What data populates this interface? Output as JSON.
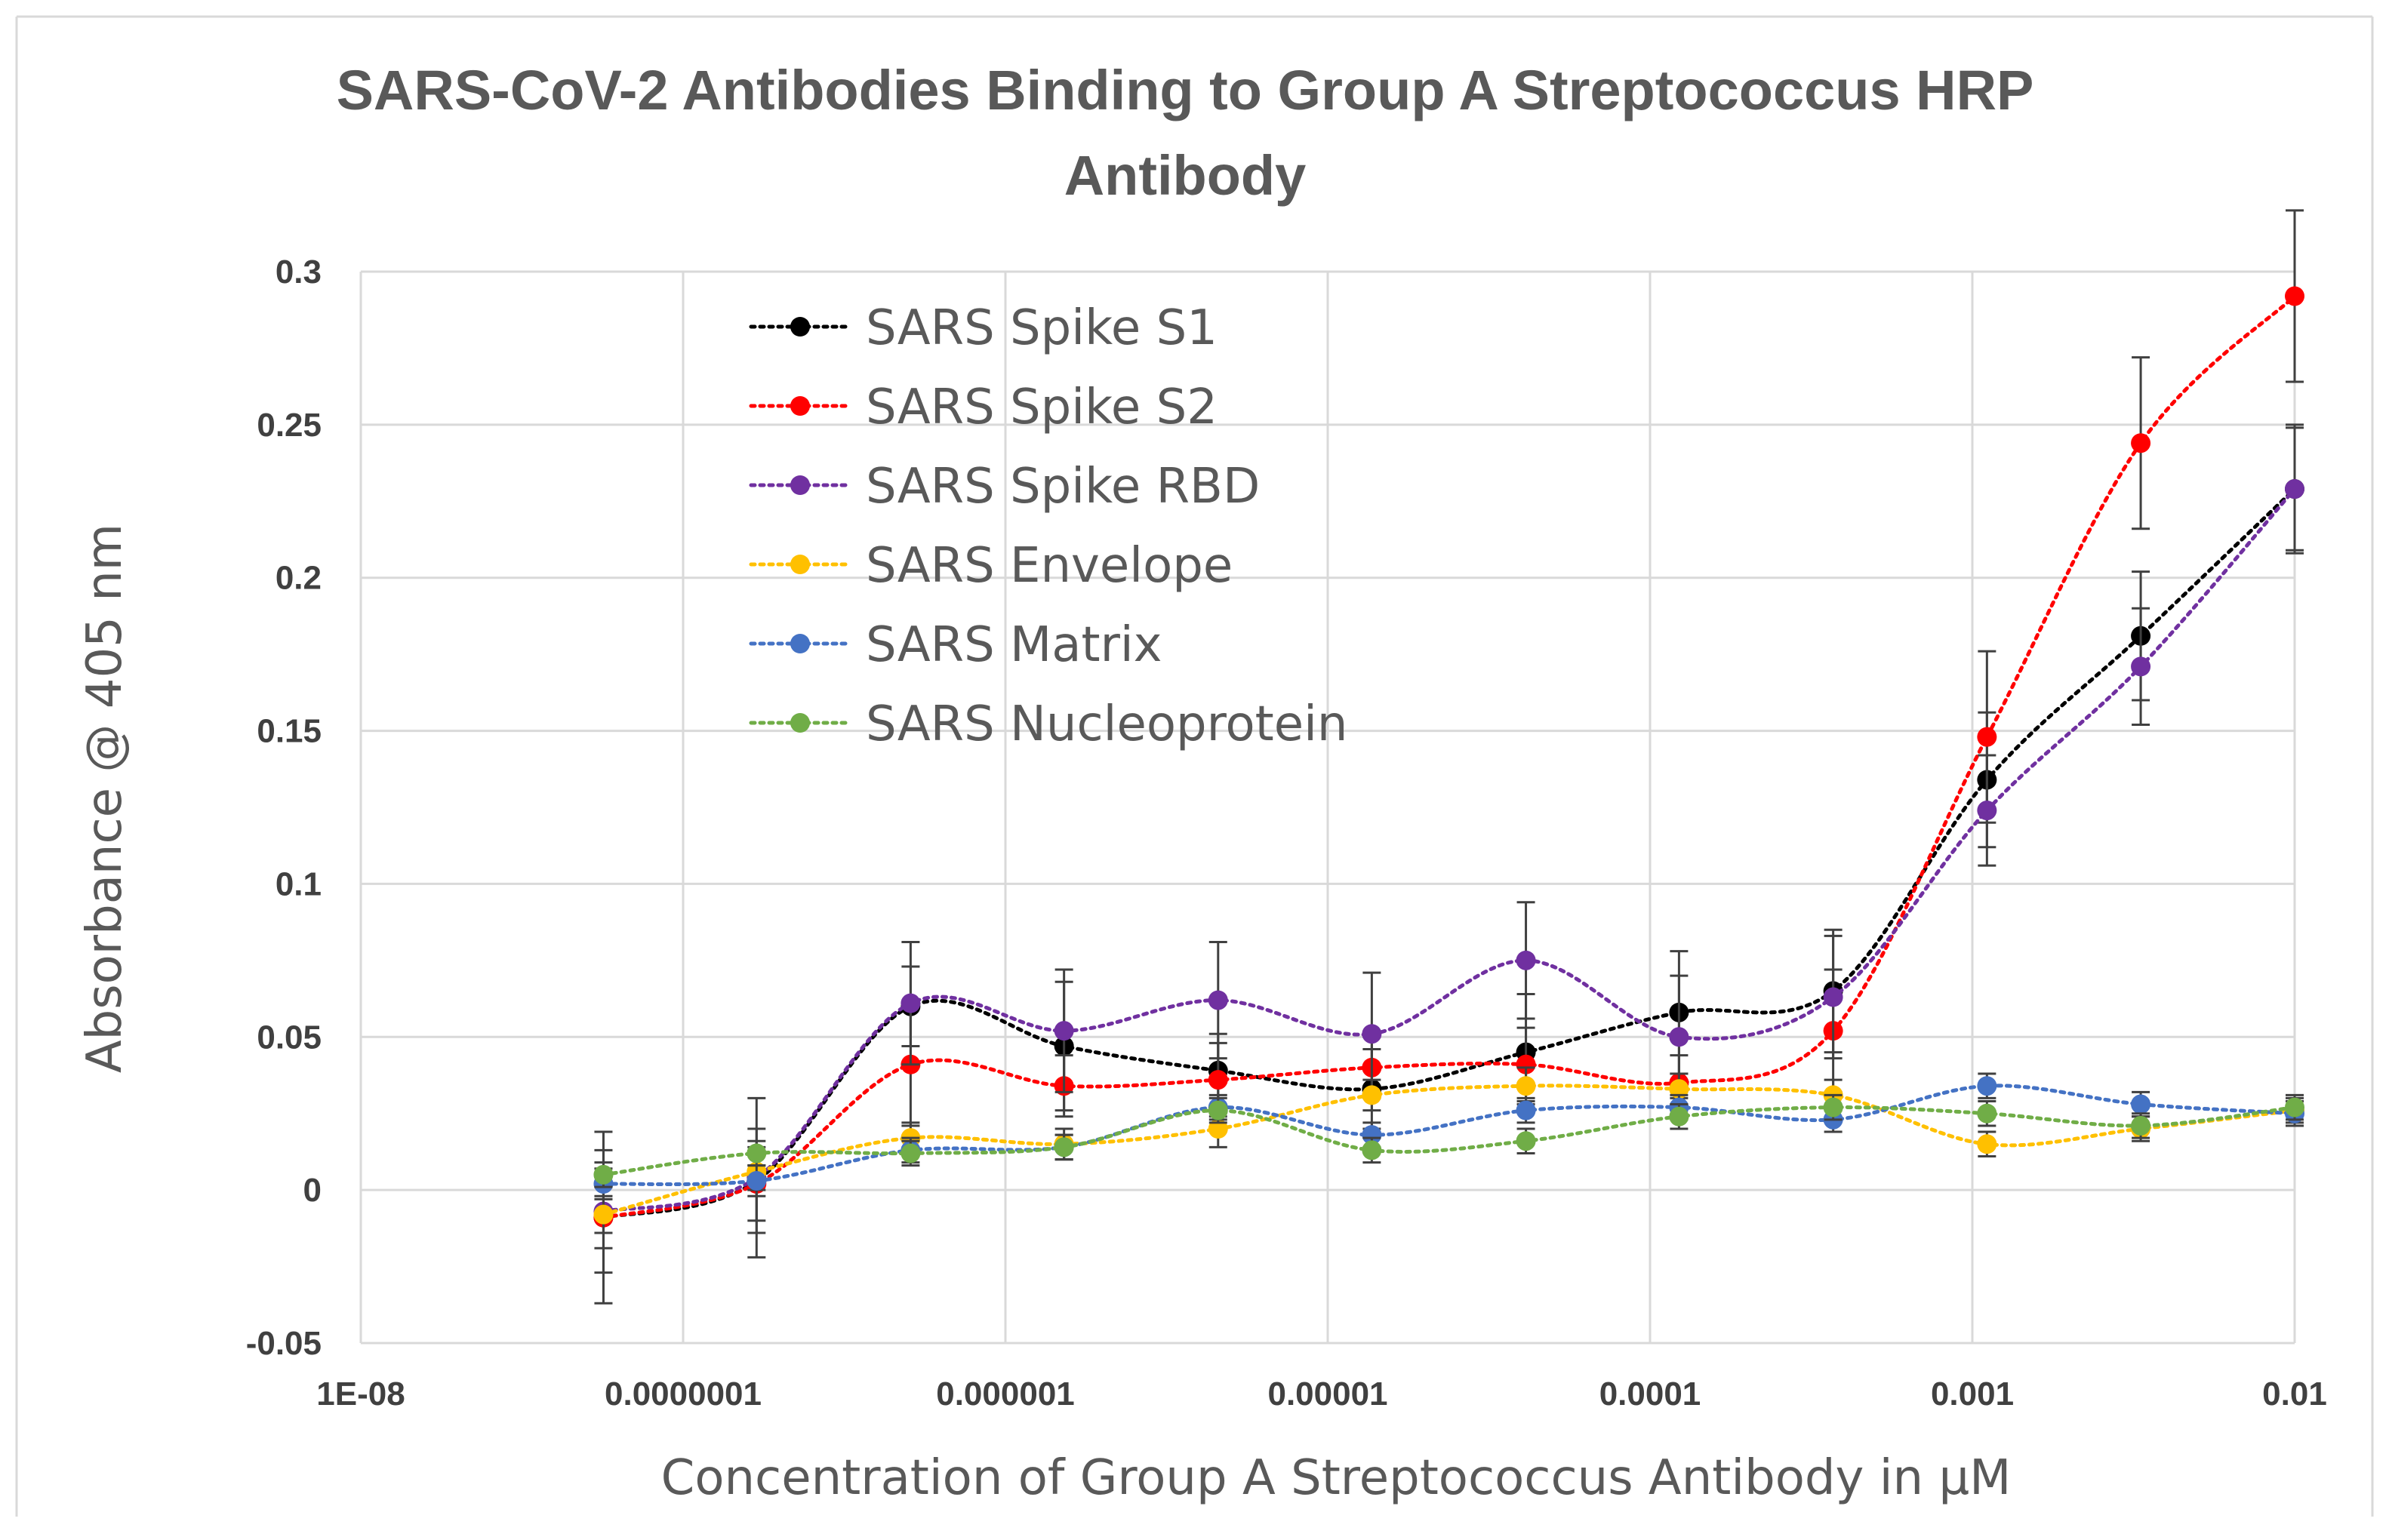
{
  "chart_data": {
    "type": "line",
    "title": "SARS-CoV-2 Antibodies Binding to Group A Streptococcus HRP Antibody",
    "title_lines": [
      "SARS-CoV-2 Antibodies Binding to Group A Streptococcus HRP",
      "Antibody"
    ],
    "xlabel": "Concentration of Group A Streptococcus Antibody in µM",
    "ylabel": "Absorbance @ 405 nm",
    "x_scale": "log",
    "xlim": [
      1e-08,
      0.01
    ],
    "ylim": [
      -0.05,
      0.3
    ],
    "grid": true,
    "legend_position": "top-left",
    "x_tick_labels": [
      "1E-08",
      "0.0000001",
      "0.000001",
      "0.00001",
      "0.0001",
      "0.001",
      "0.01"
    ],
    "y_tick_labels": [
      "-0.05",
      "0",
      "0.05",
      "0.1",
      "0.15",
      "0.2",
      "0.25",
      "0.3"
    ],
    "x": [
      5.66e-08,
      1.69e-07,
      5.08e-07,
      1.52e-06,
      4.57e-06,
      1.37e-05,
      4.12e-05,
      0.000123,
      0.00037,
      0.00111,
      0.00333,
      0.01
    ],
    "series": [
      {
        "name": "SARS Spike S1",
        "color": "#000000",
        "values": [
          -0.009,
          0.003,
          0.06,
          0.047,
          0.039,
          0.033,
          0.045,
          0.058,
          0.065,
          0.134,
          0.181,
          0.229
        ],
        "errors": [
          0.028,
          0.017,
          0.013,
          0.021,
          0.012,
          0.013,
          0.019,
          0.02,
          0.02,
          0.022,
          0.021,
          0.021
        ]
      },
      {
        "name": "SARS Spike S2",
        "color": "#ff0000",
        "values": [
          -0.009,
          0.002,
          0.041,
          0.034,
          0.036,
          0.04,
          0.041,
          0.035,
          0.052,
          0.148,
          0.244,
          0.292
        ],
        "errors": [
          0.01,
          0.012,
          0.02,
          0.01,
          0.012,
          0.01,
          0.012,
          0.009,
          0.02,
          0.028,
          0.028,
          0.028
        ]
      },
      {
        "name": "SARS Spike RBD",
        "color": "#7030a0",
        "values": [
          -0.007,
          0.004,
          0.061,
          0.052,
          0.062,
          0.051,
          0.075,
          0.05,
          0.063,
          0.124,
          0.171,
          0.229
        ],
        "errors": [
          0.02,
          0.026,
          0.02,
          0.02,
          0.019,
          0.02,
          0.019,
          0.02,
          0.02,
          0.018,
          0.019,
          0.02
        ]
      },
      {
        "name": "SARS Envelope",
        "color": "#ffc000",
        "values": [
          -0.008,
          0.006,
          0.017,
          0.015,
          0.02,
          0.031,
          0.034,
          0.033,
          0.031,
          0.015,
          0.02,
          0.026
        ],
        "errors": [
          0.006,
          0.006,
          0.005,
          0.005,
          0.006,
          0.005,
          0.006,
          0.005,
          0.005,
          0.004,
          0.004,
          0.004
        ]
      },
      {
        "name": "SARS Matrix",
        "color": "#4472c4",
        "values": [
          0.002,
          0.003,
          0.013,
          0.014,
          0.027,
          0.018,
          0.026,
          0.027,
          0.023,
          0.034,
          0.028,
          0.025
        ],
        "errors": [
          0.005,
          0.005,
          0.004,
          0.004,
          0.004,
          0.004,
          0.004,
          0.004,
          0.004,
          0.004,
          0.004,
          0.004
        ]
      },
      {
        "name": "SARS Nucleoprotein",
        "color": "#70ad47",
        "values": [
          0.005,
          0.012,
          0.012,
          0.014,
          0.026,
          0.013,
          0.016,
          0.024,
          0.027,
          0.025,
          0.021,
          0.027
        ],
        "errors": [
          0.004,
          0.004,
          0.004,
          0.004,
          0.004,
          0.004,
          0.004,
          0.004,
          0.004,
          0.004,
          0.004,
          0.004
        ]
      }
    ]
  }
}
